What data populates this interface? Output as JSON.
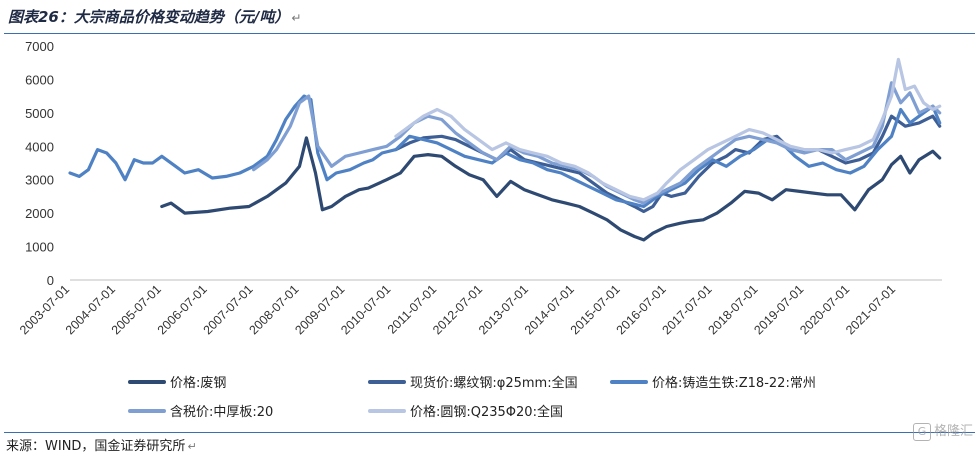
{
  "header": {
    "title": "图表26：大宗商品价格变动趋势（元/吨）",
    "return_mark": "↵"
  },
  "footer": {
    "source": "来源：WIND，国金证券研究所",
    "return_mark": "↵"
  },
  "watermark": {
    "logo_glyph": "G",
    "text": "格隆汇"
  },
  "chart_data": {
    "type": "line",
    "title": "大宗商品价格变动趋势（元/吨）",
    "xlabel": "",
    "ylabel": "",
    "ylim": [
      0,
      7000
    ],
    "y_ticks": [
      0,
      1000,
      2000,
      3000,
      4000,
      5000,
      6000,
      7000
    ],
    "x_range": [
      2003.5,
      2022.5
    ],
    "x_tick_labels": [
      "2003-07-01",
      "2004-07-01",
      "2005-07-01",
      "2006-07-01",
      "2007-07-01",
      "2008-07-01",
      "2009-07-01",
      "2010-07-01",
      "2011-07-01",
      "2012-07-01",
      "2013-07-01",
      "2014-07-01",
      "2015-07-01",
      "2016-07-01",
      "2017-07-01",
      "2018-07-01",
      "2019-07-01",
      "2020-07-01",
      "2021-07-01"
    ],
    "grid": false,
    "legend_position": "bottom",
    "series": [
      {
        "name": "价格:废钢",
        "color": "#2e4a72",
        "x": [
          2005.5,
          2005.7,
          2006.0,
          2006.5,
          2007.0,
          2007.4,
          2007.8,
          2008.2,
          2008.5,
          2008.65,
          2008.85,
          2009.0,
          2009.2,
          2009.5,
          2009.8,
          2010.0,
          2010.4,
          2010.7,
          2011.0,
          2011.3,
          2011.6,
          2011.9,
          2012.2,
          2012.5,
          2012.8,
          2013.1,
          2013.4,
          2013.7,
          2014.0,
          2014.3,
          2014.6,
          2014.9,
          2015.2,
          2015.5,
          2015.8,
          2016.0,
          2016.2,
          2016.5,
          2016.8,
          2017.0,
          2017.3,
          2017.6,
          2017.9,
          2018.2,
          2018.5,
          2018.8,
          2019.1,
          2019.4,
          2019.7,
          2020.0,
          2020.3,
          2020.6,
          2020.9,
          2021.2,
          2021.4,
          2021.6,
          2021.8,
          2022.0,
          2022.3,
          2022.45
        ],
        "values": [
          2200,
          2300,
          2000,
          2050,
          2150,
          2200,
          2500,
          2900,
          3400,
          4250,
          3200,
          2100,
          2200,
          2500,
          2700,
          2750,
          3000,
          3200,
          3700,
          3750,
          3700,
          3400,
          3150,
          3000,
          2500,
          2950,
          2700,
          2550,
          2400,
          2300,
          2200,
          2000,
          1800,
          1500,
          1300,
          1200,
          1400,
          1600,
          1700,
          1750,
          1800,
          2000,
          2300,
          2650,
          2600,
          2400,
          2700,
          2650,
          2600,
          2550,
          2550,
          2100,
          2700,
          3000,
          3450,
          3700,
          3200,
          3600,
          3850,
          3650
        ]
      },
      {
        "name": "现货价:螺纹钢:φ25mm:全国",
        "color": "#3d5f95",
        "x": [
          2010.6,
          2010.9,
          2011.2,
          2011.6,
          2011.9,
          2012.2,
          2012.5,
          2012.8,
          2013.1,
          2013.4,
          2013.7,
          2014.0,
          2014.3,
          2014.6,
          2014.9,
          2015.2,
          2015.5,
          2015.8,
          2016.0,
          2016.2,
          2016.4,
          2016.6,
          2016.9,
          2017.2,
          2017.5,
          2017.8,
          2018.0,
          2018.3,
          2018.6,
          2018.9,
          2019.2,
          2019.5,
          2019.8,
          2020.1,
          2020.4,
          2020.7,
          2021.0,
          2021.2,
          2021.4,
          2021.7,
          2022.0,
          2022.3,
          2022.45
        ],
        "values": [
          3900,
          4100,
          4250,
          4300,
          4200,
          4000,
          3800,
          3600,
          3900,
          3600,
          3500,
          3400,
          3300,
          3200,
          2900,
          2600,
          2400,
          2200,
          2050,
          2200,
          2600,
          2500,
          2600,
          3100,
          3500,
          3700,
          3900,
          3800,
          4200,
          4300,
          3900,
          3850,
          3900,
          3700,
          3500,
          3600,
          3800,
          4300,
          4900,
          4600,
          4700,
          4900,
          4600
        ]
      },
      {
        "name": "价格:铸造生铁:Z18-22:常州",
        "color": "#4f82c4",
        "x": [
          2003.5,
          2003.7,
          2003.9,
          2004.1,
          2004.3,
          2004.5,
          2004.7,
          2004.9,
          2005.1,
          2005.3,
          2005.5,
          2005.8,
          2006.0,
          2006.3,
          2006.6,
          2006.9,
          2007.2,
          2007.5,
          2007.8,
          2008.0,
          2008.2,
          2008.4,
          2008.6,
          2008.75,
          2008.9,
          2009.1,
          2009.3,
          2009.6,
          2009.9,
          2010.1,
          2010.3,
          2010.6,
          2010.9,
          2011.2,
          2011.5,
          2011.8,
          2012.1,
          2012.4,
          2012.7,
          2013.0,
          2013.3,
          2013.6,
          2013.9,
          2014.2,
          2014.5,
          2014.8,
          2015.1,
          2015.4,
          2015.7,
          2016.0,
          2016.3,
          2016.6,
          2016.9,
          2017.2,
          2017.5,
          2017.8,
          2018.1,
          2018.4,
          2018.7,
          2019.0,
          2019.3,
          2019.6,
          2019.9,
          2020.2,
          2020.5,
          2020.8,
          2021.1,
          2021.4,
          2021.6,
          2021.8,
          2022.0,
          2022.3,
          2022.45
        ],
        "values": [
          3200,
          3100,
          3300,
          3900,
          3800,
          3500,
          3000,
          3600,
          3500,
          3500,
          3700,
          3400,
          3200,
          3300,
          3050,
          3100,
          3200,
          3400,
          3700,
          4200,
          4800,
          5200,
          5500,
          5400,
          3800,
          3000,
          3200,
          3300,
          3500,
          3600,
          3800,
          3900,
          4300,
          4200,
          4100,
          3900,
          3700,
          3600,
          3500,
          3800,
          3600,
          3500,
          3300,
          3200,
          3000,
          2800,
          2600,
          2400,
          2300,
          2200,
          2500,
          2700,
          2900,
          3300,
          3600,
          3400,
          3700,
          3900,
          4200,
          4100,
          3700,
          3400,
          3500,
          3300,
          3200,
          3400,
          3900,
          4300,
          5100,
          4700,
          4900,
          5200,
          4700
        ]
      },
      {
        "name": "含税价:中厚板:20",
        "color": "#7f9fd3",
        "x": [
          2007.5,
          2007.8,
          2008.0,
          2008.3,
          2008.5,
          2008.7,
          2008.9,
          2009.2,
          2009.5,
          2009.8,
          2010.1,
          2010.4,
          2010.7,
          2011.0,
          2011.3,
          2011.6,
          2011.9,
          2012.2,
          2012.5,
          2012.8,
          2013.1,
          2013.4,
          2013.7,
          2014.0,
          2014.3,
          2014.6,
          2014.9,
          2015.2,
          2015.5,
          2015.8,
          2016.0,
          2016.2,
          2016.5,
          2016.8,
          2017.1,
          2017.4,
          2017.7,
          2018.0,
          2018.3,
          2018.6,
          2018.9,
          2019.2,
          2019.5,
          2019.8,
          2020.1,
          2020.4,
          2020.7,
          2021.0,
          2021.2,
          2021.4,
          2021.6,
          2021.8,
          2022.0,
          2022.3,
          2022.45
        ],
        "values": [
          3300,
          3600,
          3900,
          4600,
          5300,
          5500,
          4000,
          3400,
          3700,
          3800,
          3900,
          4000,
          4300,
          4700,
          4900,
          4800,
          4400,
          4100,
          3800,
          3600,
          4000,
          3800,
          3700,
          3500,
          3400,
          3300,
          3100,
          2800,
          2600,
          2400,
          2300,
          2500,
          2700,
          2900,
          3300,
          3600,
          3900,
          4200,
          4300,
          4200,
          4100,
          3900,
          3800,
          3900,
          3900,
          3600,
          3800,
          4000,
          4600,
          5900,
          5300,
          5600,
          5000,
          5200,
          5000
        ]
      },
      {
        "name": "价格:圆钢:Q235Φ20:全国",
        "color": "#b8c6e3",
        "x": [
          2010.6,
          2010.9,
          2011.2,
          2011.5,
          2011.8,
          2012.1,
          2012.4,
          2012.7,
          2013.0,
          2013.3,
          2013.6,
          2013.9,
          2014.2,
          2014.5,
          2014.8,
          2015.1,
          2015.4,
          2015.7,
          2016.0,
          2016.3,
          2016.5,
          2016.8,
          2017.1,
          2017.4,
          2017.7,
          2018.0,
          2018.3,
          2018.6,
          2018.9,
          2019.2,
          2019.5,
          2019.8,
          2020.1,
          2020.4,
          2020.7,
          2021.0,
          2021.2,
          2021.4,
          2021.55,
          2021.7,
          2021.9,
          2022.1,
          2022.3,
          2022.45
        ],
        "values": [
          4300,
          4600,
          4900,
          5100,
          4900,
          4500,
          4200,
          3900,
          4100,
          3900,
          3800,
          3700,
          3500,
          3400,
          3200,
          2900,
          2700,
          2500,
          2400,
          2600,
          2900,
          3300,
          3600,
          3900,
          4100,
          4300,
          4500,
          4400,
          4200,
          4000,
          3900,
          3900,
          3800,
          3900,
          4000,
          4200,
          4800,
          5500,
          6600,
          5700,
          5800,
          5300,
          5100,
          5200
        ]
      }
    ]
  }
}
